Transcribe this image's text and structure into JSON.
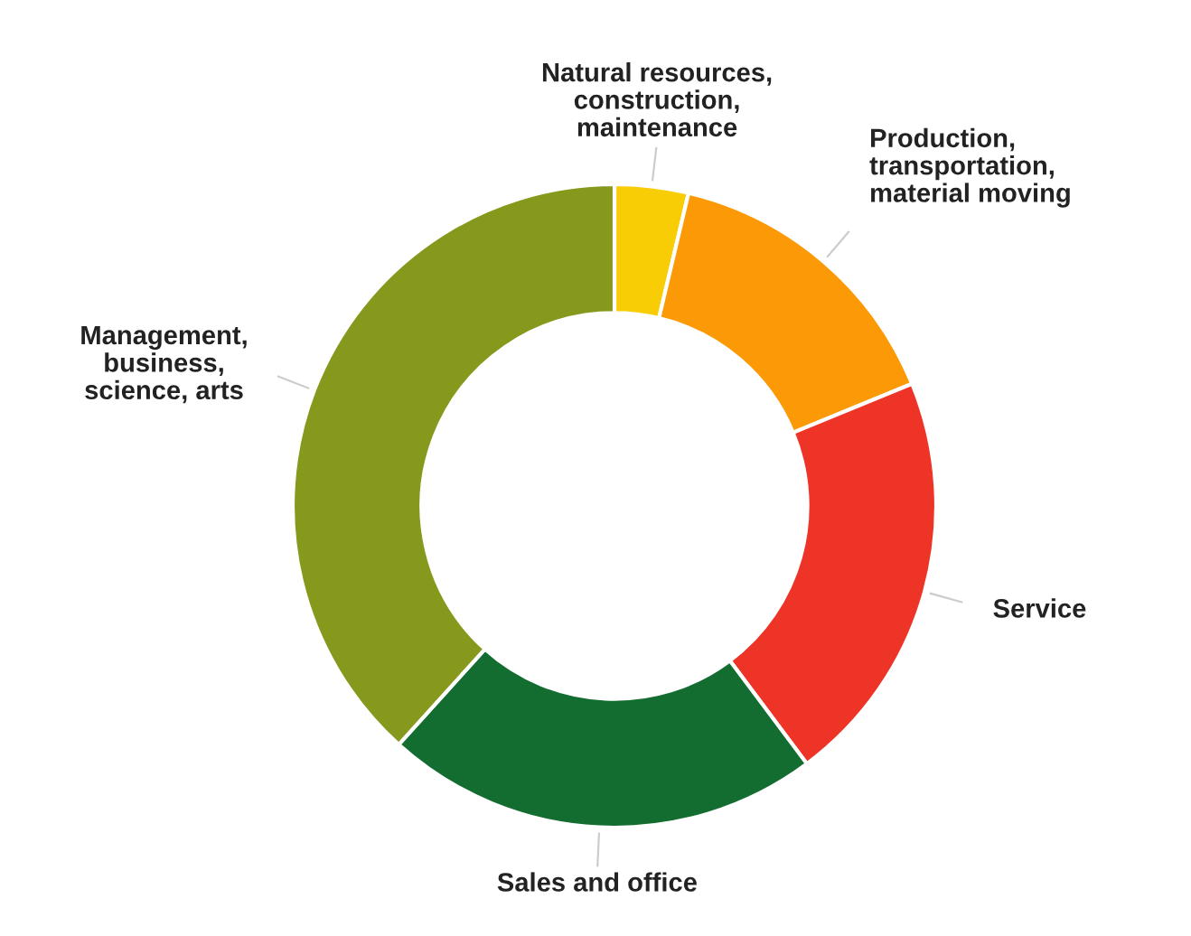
{
  "chart_data": {
    "type": "donut",
    "categories": [
      "Natural resources,\nconstruction,\nmaintenance",
      "Production,\ntransportation,\nmaterial moving",
      "Service",
      "Sales and office",
      "Management,\nbusiness,\nscience, arts"
    ],
    "values": [
      3.7,
      15.1,
      21.0,
      21.9,
      38.3
    ],
    "colors": [
      "#f9cd05",
      "#fb9a06",
      "#ee3427",
      "#146d30",
      "#86991c"
    ]
  }
}
